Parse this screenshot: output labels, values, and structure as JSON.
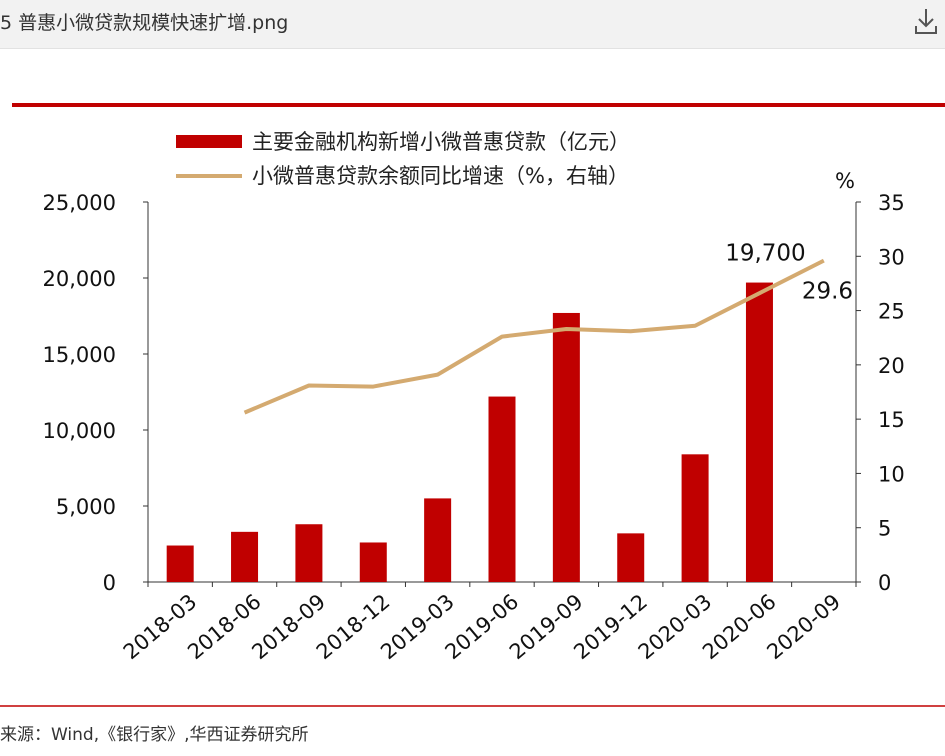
{
  "header": {
    "filename": "5 普惠小微贷款规模快速扩增.png",
    "download_icon": "download-icon"
  },
  "footer": {
    "source": "来源：Wind,《银行家》,华西证券研究所"
  },
  "colors": {
    "bar": "#c00000",
    "line": "#d4aa70",
    "rule": "#c00000"
  },
  "chart_data": {
    "type": "bar+line",
    "categories": [
      "2018-03",
      "2018-06",
      "2018-09",
      "2018-12",
      "2019-03",
      "2019-06",
      "2019-09",
      "2019-12",
      "2020-03",
      "2020-06",
      "2020-09"
    ],
    "series": [
      {
        "name": "主要金融机构新增小微普惠贷款（亿元）",
        "type": "bar",
        "axis": "left",
        "values": [
          2400,
          3300,
          3800,
          2600,
          5500,
          12200,
          17700,
          3200,
          8400,
          19700,
          null
        ]
      },
      {
        "name": "小微普惠贷款余额同比增速（%，右轴）",
        "type": "line",
        "axis": "right",
        "values": [
          null,
          15.6,
          18.1,
          18.0,
          19.1,
          22.6,
          23.3,
          23.1,
          23.6,
          26.6,
          29.6
        ]
      }
    ],
    "y_left": {
      "ticks": [
        "0",
        "5,000",
        "10,000",
        "15,000",
        "20,000",
        "25,000"
      ],
      "lim": [
        0,
        25000
      ]
    },
    "y_right": {
      "unit": "%",
      "ticks": [
        "0",
        "5",
        "10",
        "15",
        "20",
        "25",
        "30",
        "35"
      ],
      "lim": [
        0,
        35
      ]
    },
    "annotations": [
      {
        "text": "19,700",
        "series": 0,
        "index": 9
      },
      {
        "text": "29.6",
        "series": 1,
        "index": 10
      }
    ],
    "legend_position": "top-left",
    "grid": false
  }
}
